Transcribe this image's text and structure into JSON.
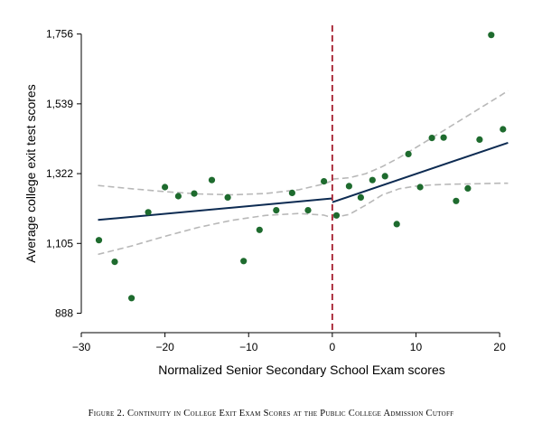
{
  "chart_data": {
    "type": "scatter",
    "title": "",
    "xlabel": "Normalized Senior Secondary School Exam scores",
    "ylabel": "Average college exit test scores",
    "xlim": [
      -30,
      21.5
    ],
    "ylim": [
      850,
      1800
    ],
    "xticks": [
      -30,
      -20,
      -10,
      0,
      10,
      20
    ],
    "xtick_labels": [
      "−30",
      "−20",
      "−10",
      "0",
      "10",
      "20"
    ],
    "yticks": [
      888,
      1105,
      1322,
      1539,
      1756
    ],
    "ytick_labels": [
      "888",
      "1,105",
      "1,322",
      "1,539",
      "1,756"
    ],
    "grid": false,
    "cutoff": 0,
    "points": [
      {
        "x": -27.9,
        "y": 1115
      },
      {
        "x": -26.0,
        "y": 1048
      },
      {
        "x": -24.0,
        "y": 935
      },
      {
        "x": -22.0,
        "y": 1202
      },
      {
        "x": -20.0,
        "y": 1280
      },
      {
        "x": -18.4,
        "y": 1252
      },
      {
        "x": -16.5,
        "y": 1260
      },
      {
        "x": -14.4,
        "y": 1302
      },
      {
        "x": -12.5,
        "y": 1248
      },
      {
        "x": -10.6,
        "y": 1050
      },
      {
        "x": -8.7,
        "y": 1147
      },
      {
        "x": -6.7,
        "y": 1208
      },
      {
        "x": -4.8,
        "y": 1262
      },
      {
        "x": -2.9,
        "y": 1208
      },
      {
        "x": -1.0,
        "y": 1298
      },
      {
        "x": 0.5,
        "y": 1192
      },
      {
        "x": 2.0,
        "y": 1283
      },
      {
        "x": 3.4,
        "y": 1248
      },
      {
        "x": 4.8,
        "y": 1302
      },
      {
        "x": 6.3,
        "y": 1314
      },
      {
        "x": 7.7,
        "y": 1165
      },
      {
        "x": 9.1,
        "y": 1383
      },
      {
        "x": 10.5,
        "y": 1280
      },
      {
        "x": 11.9,
        "y": 1433
      },
      {
        "x": 13.3,
        "y": 1434
      },
      {
        "x": 14.8,
        "y": 1237
      },
      {
        "x": 16.2,
        "y": 1276
      },
      {
        "x": 17.6,
        "y": 1428
      },
      {
        "x": 19.0,
        "y": 1753
      },
      {
        "x": 20.4,
        "y": 1460
      }
    ],
    "fit_left": {
      "x": [
        -28,
        0
      ],
      "y": [
        1178,
        1245
      ]
    },
    "fit_right": {
      "x": [
        0,
        21
      ],
      "y": [
        1233,
        1418
      ]
    },
    "ci_left_upper": {
      "x": [
        -28,
        -24,
        -20,
        -16,
        -12,
        -8,
        -4,
        -1,
        0
      ],
      "y": [
        1285,
        1275,
        1266,
        1259,
        1256,
        1260,
        1272,
        1290,
        1300
      ]
    },
    "ci_left_lower": {
      "x": [
        -28,
        -24,
        -20,
        -16,
        -12,
        -8,
        -4,
        -1,
        0
      ],
      "y": [
        1071,
        1097,
        1127,
        1155,
        1177,
        1192,
        1198,
        1193,
        1185
      ]
    },
    "ci_right_upper": {
      "x": [
        0,
        2,
        4,
        6,
        8,
        10,
        12,
        14,
        16,
        18,
        20,
        21
      ],
      "y": [
        1305,
        1309,
        1322,
        1344,
        1372,
        1403,
        1435,
        1467,
        1499,
        1531,
        1563,
        1580
      ]
    },
    "ci_right_lower": {
      "x": [
        0,
        2,
        4,
        6,
        8,
        10,
        12,
        14,
        16,
        18,
        20,
        21
      ],
      "y": [
        1185,
        1195,
        1224,
        1256,
        1275,
        1283,
        1287,
        1289,
        1290,
        1291,
        1292,
        1292
      ]
    },
    "colors": {
      "points": "#1e6b2e",
      "fit": "#0d2b52",
      "ci": "#b8b8b8",
      "cutoff": "#a51d2d"
    }
  },
  "caption": "Figure 2. Continuity in College Exit Exam Scores at the Public College Admission Cutoff"
}
